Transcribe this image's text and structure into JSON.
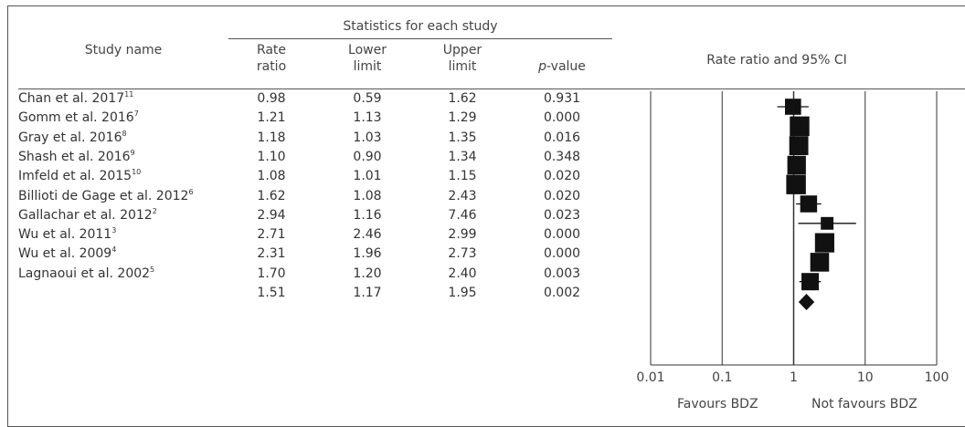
{
  "header": {
    "group_label": "Statistics for each study",
    "study_col": "Study name",
    "rate_ratio": [
      "Rate",
      "ratio"
    ],
    "lower_limit": [
      "Lower",
      "limit"
    ],
    "upper_limit": [
      "Upper",
      "limit"
    ],
    "p_value_italic": "p",
    "p_value_rest": "-value",
    "plot_title": "Rate ratio and 95% CI"
  },
  "rows": [
    {
      "study": "Chan et al. 2017",
      "ref": "11",
      "rr": "0.98",
      "lower": "0.59",
      "upper": "1.62",
      "p": "0.931"
    },
    {
      "study": "Gomm et al. 2016",
      "ref": "7",
      "rr": "1.21",
      "lower": "1.13",
      "upper": "1.29",
      "p": "0.000"
    },
    {
      "study": "Gray et al. 2016",
      "ref": "8",
      "rr": "1.18",
      "lower": "1.03",
      "upper": "1.35",
      "p": "0.016"
    },
    {
      "study": "Shash et al. 2016",
      "ref": "9",
      "rr": "1.10",
      "lower": "0.90",
      "upper": "1.34",
      "p": "0.348"
    },
    {
      "study": "Imfeld et al. 2015",
      "ref": "10",
      "rr": "1.08",
      "lower": "1.01",
      "upper": "1.15",
      "p": "0.020"
    },
    {
      "study": "Billioti de Gage et al. 2012",
      "ref": "6",
      "rr": "1.62",
      "lower": "1.08",
      "upper": "2.43",
      "p": "0.020"
    },
    {
      "study": "Gallachar et al. 2012",
      "ref": "2",
      "rr": "2.94",
      "lower": "1.16",
      "upper": "7.46",
      "p": "0.023"
    },
    {
      "study": "Wu et al. 2011",
      "ref": "3",
      "rr": "2.71",
      "lower": "2.46",
      "upper": "2.99",
      "p": "0.000"
    },
    {
      "study": "Wu et al. 2009",
      "ref": "4",
      "rr": "2.31",
      "lower": "1.96",
      "upper": "2.73",
      "p": "0.000"
    },
    {
      "study": "Lagnaoui et al. 2002",
      "ref": "5",
      "rr": "1.70",
      "lower": "1.20",
      "upper": "2.40",
      "p": "0.003"
    }
  ],
  "summary": {
    "rr": "1.51",
    "lower": "1.17",
    "upper": "1.95",
    "p": "0.002"
  },
  "chart_data": {
    "type": "scatter",
    "subtype": "forest-plot",
    "title": "Rate ratio and 95% CI",
    "x_scale": "log",
    "xlim": [
      0.01,
      100
    ],
    "x_ticks": [
      0.01,
      0.1,
      1,
      10,
      100
    ],
    "x_tick_labels": [
      "0.01",
      "0.1",
      "1",
      "10",
      "100"
    ],
    "reference_line": 1,
    "left_label": "Favours BDZ",
    "right_label": "Not favours BDZ",
    "points": [
      {
        "rr": 0.98,
        "lower": 0.59,
        "upper": 1.62
      },
      {
        "rr": 1.21,
        "lower": 1.13,
        "upper": 1.29
      },
      {
        "rr": 1.18,
        "lower": 1.03,
        "upper": 1.35
      },
      {
        "rr": 1.1,
        "lower": 0.9,
        "upper": 1.34
      },
      {
        "rr": 1.08,
        "lower": 1.01,
        "upper": 1.15
      },
      {
        "rr": 1.62,
        "lower": 1.08,
        "upper": 2.43
      },
      {
        "rr": 2.94,
        "lower": 1.16,
        "upper": 7.46
      },
      {
        "rr": 2.71,
        "lower": 2.46,
        "upper": 2.99
      },
      {
        "rr": 2.31,
        "lower": 1.96,
        "upper": 2.73
      },
      {
        "rr": 1.7,
        "lower": 1.2,
        "upper": 2.4
      }
    ],
    "summary_point": {
      "rr": 1.51,
      "lower": 1.17,
      "upper": 1.95
    },
    "colors": {
      "marker": "#111111",
      "lines": "#333333"
    }
  }
}
